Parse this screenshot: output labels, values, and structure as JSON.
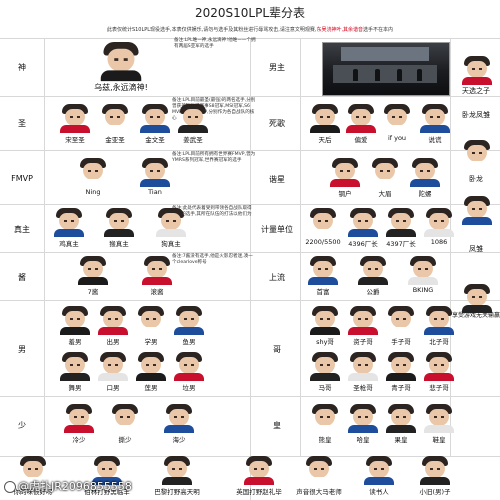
{
  "header": {
    "title": "2020S10LPL辈分表",
    "note_prefix": "此表仅统计S10LPL现役选手,本表仅供娱乐,请勿与选手及其粉丝进行辱骂攻击,请注意文明观赛,",
    "note_red": "东吴浇神叶,其余谐音",
    "note_suffix": "选手不在本内"
  },
  "left_table": [
    {
      "label": "神",
      "players": [
        {
          "name": "乌兹,永远滴神!"
        }
      ]
    },
    {
      "label": "圣",
      "desc": "备注:LPL目前最圣(最强)的两名选手,分别曾获英雄联盟赛事S8冠军,MSI冠军,S6 MVP,世界赛MVP,分别作为各自战队的核心",
      "players": [
        {
          "name": "宋至圣"
        },
        {
          "name": "金亚圣"
        },
        {
          "name": "金文圣"
        },
        {
          "name": "姜武圣"
        }
      ]
    },
    {
      "label": "FMVP",
      "desc": "备注:LPL目前所有拥有世界赛FMVP,曾为YMRS系列冠军,世界赛冠军的选手",
      "players": [
        {
          "name": "Ning"
        },
        {
          "name": "Tian"
        }
      ]
    },
    {
      "label": "真主",
      "desc": "备注:此处代表着受到带领各自战队取得冠军的选手,其所在队伍的打法以他们为核心",
      "players": [
        {
          "name": "鸡真主"
        },
        {
          "name": "猴真主"
        },
        {
          "name": "狗真主"
        }
      ]
    },
    {
      "label": "酱",
      "desc": "备注:7酱没有选手,他是火影忍者迷,凑一个clearlove称号",
      "players": [
        {
          "name": "7酱"
        },
        {
          "name": "滚酱"
        }
      ]
    },
    {
      "label": "男",
      "players": [
        {
          "name": "羞男"
        },
        {
          "name": "出男"
        },
        {
          "name": "学男"
        },
        {
          "name": "鱼男"
        },
        {
          "name": "舞男"
        },
        {
          "name": "口男"
        },
        {
          "name": "莲男"
        },
        {
          "name": "垃男"
        }
      ]
    },
    {
      "label": "少",
      "players": [
        {
          "name": "冷少"
        },
        {
          "name": "撕少"
        },
        {
          "name": "海少"
        }
      ]
    },
    {
      "label": "",
      "players": [
        {
          "name": "你的味很好呀"
        },
        {
          "name": "伯林打野黑临羊"
        },
        {
          "name": "巴黎打野高天明"
        }
      ]
    }
  ],
  "right_table": [
    {
      "label": "男主",
      "side": "天选之子"
    },
    {
      "label": "死歌",
      "players": [
        {
          "name": "天后"
        },
        {
          "name": "偏爱"
        },
        {
          "name": "if you"
        },
        {
          "name": "说谎"
        }
      ],
      "side": "卧龙凤雏"
    },
    {
      "label": "谐星",
      "players": [
        {
          "name": "钢户"
        },
        {
          "name": "大眉"
        },
        {
          "name": "陀螺"
        }
      ],
      "side": "卧龙"
    },
    {
      "label": "计量单位",
      "players": [
        {
          "name": "2200/5500"
        },
        {
          "name": "4396厂长"
        },
        {
          "name": "4397厂长"
        },
        {
          "name": "1086"
        }
      ],
      "side": "凤雏"
    },
    {
      "label": "上流",
      "players": [
        {
          "name": "首富"
        },
        {
          "name": "公爵"
        },
        {
          "name": "BKING"
        }
      ],
      "side": "享受游戏无关输赢"
    },
    {
      "label": "哥",
      "players": [
        {
          "name": "shy哥"
        },
        {
          "name": "资子哥"
        },
        {
          "name": "手子哥"
        },
        {
          "name": "北子哥"
        },
        {
          "name": "马哥"
        },
        {
          "name": "圣枪哥"
        },
        {
          "name": "青子哥"
        },
        {
          "name": "悲子哥"
        }
      ]
    },
    {
      "label": "皇",
      "players": [
        {
          "name": "熊皇"
        },
        {
          "name": "哈皇"
        },
        {
          "name": "果皇"
        },
        {
          "name": "鞋皇"
        }
      ]
    },
    {
      "label": "",
      "players": [
        {
          "name": "英国打野赵礼毕"
        },
        {
          "name": "声音很大马老师"
        },
        {
          "name": "读书人"
        },
        {
          "name": "小旧(男)子"
        }
      ]
    }
  ],
  "watermark": "@虎扑JR2096855558",
  "colors": {
    "grid": "#d8d8d8",
    "note_red": "#d0021b",
    "hair": "#2c2420",
    "skin": "#e9c7a8"
  }
}
